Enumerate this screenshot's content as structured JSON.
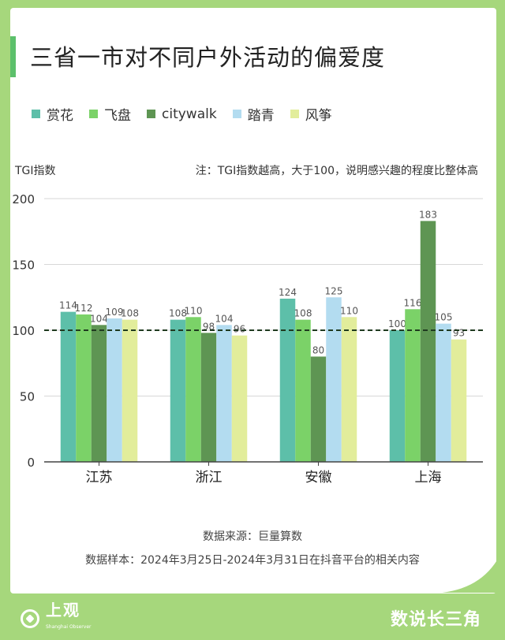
{
  "title": "三省一市对不同户外活动的偏爱度",
  "y_axis_label": "TGI指数",
  "note": "注：TGI指数越高，大于100，说明感兴趣的程度比整体高",
  "source_line": "数据来源：巨量算数",
  "sample_line": "数据样本：2024年3月25日-2024年3月31日在抖音平台的相关内容",
  "footer": {
    "logo_text": "上观",
    "logo_sub": "Shanghai Observer",
    "brand": "数说长三角"
  },
  "colors": {
    "background": "#a6d77c",
    "accent": "#5cc06b",
    "reference_line": "#1f3a1f"
  },
  "chart_data": {
    "type": "bar",
    "categories": [
      "江苏",
      "浙江",
      "安徽",
      "上海"
    ],
    "series": [
      {
        "name": "赏花",
        "color": "#5dbfa9",
        "values": [
          114,
          108,
          124,
          100
        ]
      },
      {
        "name": "飞盘",
        "color": "#7bd268",
        "values": [
          112,
          110,
          108,
          116
        ]
      },
      {
        "name": "citywalk",
        "color": "#5e9553",
        "values": [
          104,
          98,
          80,
          183
        ]
      },
      {
        "name": "踏青",
        "color": "#b3dcf0",
        "values": [
          109,
          104,
          125,
          105
        ]
      },
      {
        "name": "风筝",
        "color": "#e2ed9b",
        "values": [
          108,
          96,
          110,
          93
        ]
      }
    ],
    "ylim": [
      0,
      200
    ],
    "yticks": [
      0,
      50,
      100,
      150,
      200
    ],
    "reference_line": 100,
    "grid": true,
    "data_labels": true,
    "legend_position": "top-left"
  }
}
